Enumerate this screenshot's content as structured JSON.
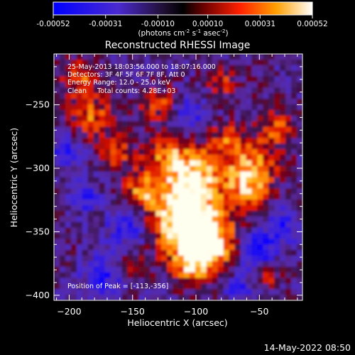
{
  "chart_data": {
    "type": "heatmap",
    "title": "Reconstructed RHESSI Image",
    "xlabel": "Heliocentric X (arcsec)",
    "ylabel": "Heliocentric Y (arcsec)",
    "x_ticks": [
      -200,
      -150,
      -100,
      -50
    ],
    "y_ticks": [
      -250,
      -300,
      -350,
      -400
    ],
    "x_range": [
      -212,
      -16
    ],
    "y_range": [
      -404,
      -210
    ],
    "colorbar": {
      "ticks": [
        "-0.00052",
        "-0.00031",
        "-0.00010",
        "0.00010",
        "0.00031",
        "0.00052"
      ],
      "range": [
        -0.00052,
        0.00052
      ],
      "unit_label": "(photons cm",
      "unit_exp1": "-2",
      "unit_mid": " s",
      "unit_exp2": "-1",
      "unit_mid2": " asec",
      "unit_exp3": "-2",
      "unit_end": ")"
    },
    "annotations": {
      "time_range": "25-May-2013 18:03:56.000 to 18:07:16.000",
      "detectors": "Detectors: 3F 4F 5F 6F 7F 8F, Att 0",
      "energy": "Energy Range: 12.0 - 25.0 keV",
      "clean": "Clean     Total counts: 4.28E+03",
      "peak": "Position of Peak = [-113,-356]"
    }
  },
  "footer_date": "14-May-2022 08:50"
}
